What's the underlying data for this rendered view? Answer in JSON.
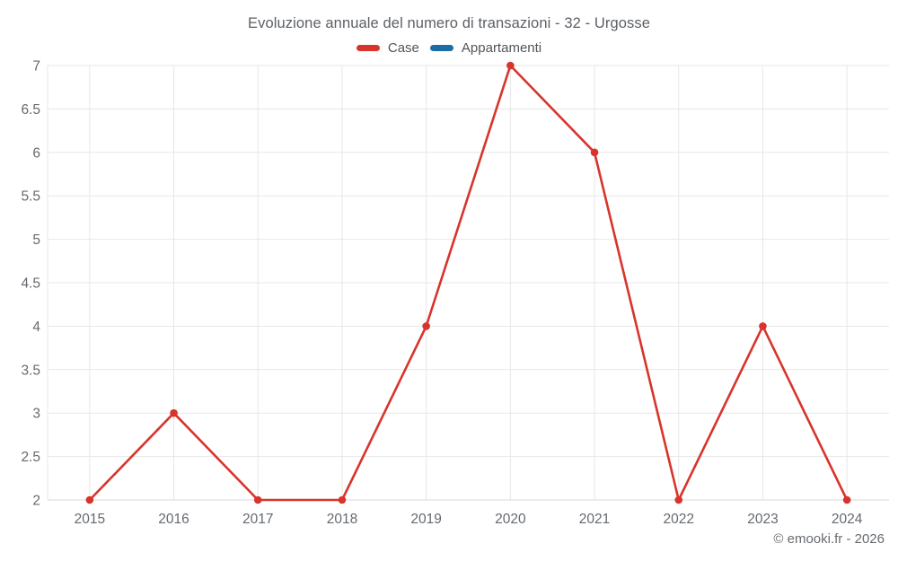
{
  "chart_data": {
    "type": "line",
    "title": "Evoluzione annuale del numero di transazioni - 32 - Urgosse",
    "categories": [
      "2015",
      "2016",
      "2017",
      "2018",
      "2019",
      "2020",
      "2021",
      "2022",
      "2023",
      "2024"
    ],
    "series": [
      {
        "name": "Case",
        "color": "#d8342c",
        "values": [
          2,
          3,
          2,
          2,
          4,
          7,
          6,
          2,
          4,
          2
        ]
      },
      {
        "name": "Appartamenti",
        "color": "#1b6ea5",
        "values": []
      }
    ],
    "ylim": [
      2,
      7
    ],
    "ytick_step": 0.5,
    "yticks": [
      "7",
      "6.5",
      "6",
      "5.5",
      "5",
      "4.5",
      "4",
      "3.5",
      "3",
      "2.5",
      "2"
    ],
    "grid": true,
    "legend_position": "top",
    "xlabel": "",
    "ylabel": ""
  },
  "colors": {
    "grid": "#e7e7e7",
    "axis_line": "#d9d9d9",
    "tick_label": "#65696f"
  },
  "footer": {
    "credit": "© emooki.fr - 2026"
  }
}
